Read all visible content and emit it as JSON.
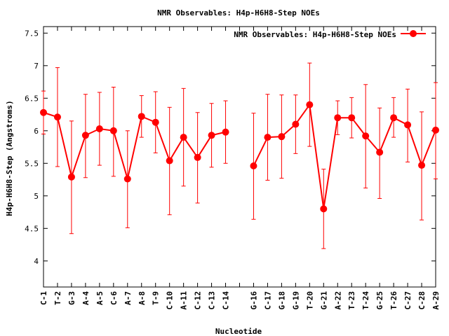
{
  "chart_data": {
    "type": "line",
    "title": "NMR Observables: H4p-H6H8-Step NOEs",
    "xlabel": "Nucleotide",
    "ylabel": "H4p-H6H8-Step (Angstroms)",
    "ylim": [
      3.6,
      7.6
    ],
    "yticks": [
      "4",
      "4.5",
      "5",
      "5.5",
      "6",
      "6.5",
      "7",
      "7.5"
    ],
    "grid": false,
    "legend_position": "top-right",
    "colors": {
      "series": "#ff0000",
      "axis": "#000000"
    },
    "categories": [
      "C-1",
      "T-2",
      "G-3",
      "A-4",
      "A-5",
      "C-6",
      "A-7",
      "A-8",
      "T-9",
      "C-10",
      "A-11",
      "C-12",
      "C-13",
      "C-14",
      "",
      "G-16",
      "C-17",
      "G-18",
      "G-19",
      "T-20",
      "G-21",
      "A-22",
      "T-23",
      "T-24",
      "G-25",
      "T-26",
      "C-27",
      "C-28",
      "A-29"
    ],
    "series": [
      {
        "name": "NMR Observables: H4p-H6H8-Step NOEs",
        "segments": [
          {
            "start_index": 0,
            "values": [
              6.28,
              6.21,
              5.29,
              5.93,
              6.03,
              6.0,
              5.26,
              6.22,
              6.13,
              5.54,
              5.9,
              5.59,
              5.93,
              5.98
            ],
            "err_high": [
              6.61,
              6.97,
              6.15,
              6.56,
              6.59,
              6.67,
              6.0,
              6.54,
              6.6,
              6.36,
              6.65,
              6.28,
              6.42,
              6.46
            ],
            "err_low": [
              5.95,
              5.45,
              4.42,
              5.28,
              5.47,
              5.3,
              4.51,
              5.9,
              5.66,
              4.71,
              5.15,
              4.89,
              5.44,
              5.5
            ]
          },
          {
            "start_index": 15,
            "values": [
              5.46,
              5.9,
              5.91,
              6.1,
              6.4,
              4.8,
              6.2,
              6.2,
              5.92,
              5.67,
              6.2,
              6.09,
              5.47,
              6.01
            ],
            "err_high": [
              6.27,
              6.56,
              6.55,
              6.55,
              7.04,
              5.41,
              6.46,
              6.51,
              6.71,
              6.35,
              6.51,
              6.64,
              6.29,
              6.74
            ],
            "err_low": [
              4.64,
              5.24,
              5.27,
              5.65,
              5.76,
              4.19,
              5.94,
              5.89,
              5.12,
              4.96,
              5.9,
              5.52,
              4.63,
              5.26
            ]
          }
        ]
      }
    ]
  }
}
